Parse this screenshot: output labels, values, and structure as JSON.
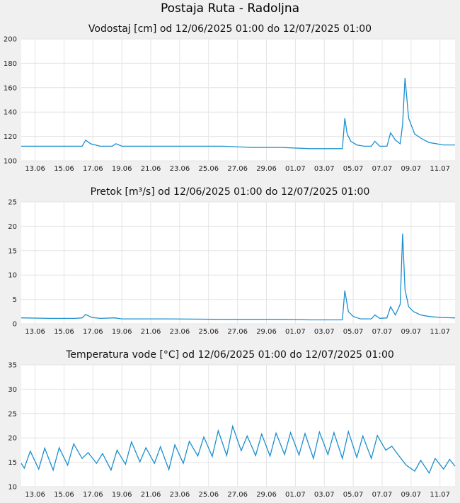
{
  "title": "Postaja Ruta - Radoljna",
  "colors": {
    "series": "#1a8fcf",
    "background": "#f0f0f0",
    "plot_area": "#ffffff",
    "grid": "#e4e4e4"
  },
  "chart_data": [
    {
      "type": "line",
      "title": "Vodostaj [cm] od 12/06/2025 01:00 do 12/07/2025 01:00",
      "xlim": [
        "2025-06-12 01:00",
        "2025-07-12 01:00"
      ],
      "ylim": [
        100,
        200
      ],
      "yticks": [
        100,
        120,
        140,
        160,
        180,
        200
      ],
      "xticks": [
        "13.06",
        "15.06",
        "17.06",
        "19.06",
        "21.06",
        "23.06",
        "25.06",
        "27.06",
        "29.06",
        "01.07",
        "03.07",
        "05.07",
        "07.07",
        "09.07",
        "11.07"
      ],
      "grid": true,
      "series": [
        {
          "x": [
            "2025-06-12 01:00",
            "2025-06-13 00:00",
            "2025-06-14 00:00",
            "2025-06-15 00:00",
            "2025-06-15 18:00",
            "2025-06-16 06:00",
            "2025-06-16 12:00",
            "2025-06-16 20:00",
            "2025-06-17 12:00",
            "2025-06-18 00:00",
            "2025-06-18 08:00",
            "2025-06-18 14:00",
            "2025-06-19 00:00",
            "2025-06-20 00:00",
            "2025-06-22 00:00",
            "2025-06-24 00:00",
            "2025-06-26 00:00",
            "2025-06-28 00:00",
            "2025-06-30 00:00",
            "2025-07-02 00:00",
            "2025-07-03 00:00",
            "2025-07-04 00:00",
            "2025-07-04 06:00",
            "2025-07-04 10:00",
            "2025-07-04 14:00",
            "2025-07-04 20:00",
            "2025-07-05 06:00",
            "2025-07-05 18:00",
            "2025-07-06 06:00",
            "2025-07-06 12:00",
            "2025-07-06 20:00",
            "2025-07-07 08:00",
            "2025-07-07 14:00",
            "2025-07-07 22:00",
            "2025-07-08 06:00",
            "2025-07-08 10:00",
            "2025-07-08 14:00",
            "2025-07-08 20:00",
            "2025-07-09 06:00",
            "2025-07-09 18:00",
            "2025-07-10 06:00",
            "2025-07-10 18:00",
            "2025-07-11 06:00",
            "2025-07-12 01:00"
          ],
          "y": [
            112,
            112,
            112,
            112,
            112,
            112,
            117,
            114,
            112,
            112,
            112,
            114,
            112,
            112,
            112,
            112,
            112,
            111,
            111,
            110,
            110,
            110,
            110,
            135,
            122,
            116,
            113,
            112,
            112,
            116,
            112,
            112,
            123,
            117,
            114,
            130,
            168,
            135,
            122,
            118,
            115,
            114,
            113,
            113
          ]
        }
      ]
    },
    {
      "type": "line",
      "title": "Pretok [m³/s] od 12/06/2025 01:00 do 12/07/2025 01:00",
      "xlim": [
        "2025-06-12 01:00",
        "2025-07-12 01:00"
      ],
      "ylim": [
        0,
        25
      ],
      "yticks": [
        0,
        5,
        10,
        15,
        20,
        25
      ],
      "xticks": [
        "13.06",
        "15.06",
        "17.06",
        "19.06",
        "21.06",
        "23.06",
        "25.06",
        "27.06",
        "29.06",
        "01.07",
        "03.07",
        "05.07",
        "07.07",
        "09.07",
        "11.07"
      ],
      "grid": true,
      "series": [
        {
          "x": [
            "2025-06-12 01:00",
            "2025-06-14 00:00",
            "2025-06-15 18:00",
            "2025-06-16 06:00",
            "2025-06-16 12:00",
            "2025-06-16 22:00",
            "2025-06-17 12:00",
            "2025-06-18 12:00",
            "2025-06-19 00:00",
            "2025-06-22 00:00",
            "2025-06-26 00:00",
            "2025-06-30 00:00",
            "2025-07-02 00:00",
            "2025-07-04 00:00",
            "2025-07-04 06:00",
            "2025-07-04 10:00",
            "2025-07-04 16:00",
            "2025-07-05 00:00",
            "2025-07-05 12:00",
            "2025-07-06 06:00",
            "2025-07-06 12:00",
            "2025-07-06 20:00",
            "2025-07-07 08:00",
            "2025-07-07 14:00",
            "2025-07-07 22:00",
            "2025-07-08 06:00",
            "2025-07-08 10:00",
            "2025-07-08 14:00",
            "2025-07-08 20:00",
            "2025-07-09 04:00",
            "2025-07-09 16:00",
            "2025-07-10 06:00",
            "2025-07-11 00:00",
            "2025-07-12 01:00"
          ],
          "y": [
            1.2,
            1.1,
            1.1,
            1.2,
            1.9,
            1.3,
            1.1,
            1.2,
            1.0,
            1.0,
            0.9,
            0.9,
            0.8,
            0.8,
            0.8,
            6.8,
            2.5,
            1.5,
            1.0,
            1.0,
            1.8,
            1.1,
            1.2,
            3.5,
            1.8,
            4.0,
            18.5,
            7.0,
            3.5,
            2.5,
            1.8,
            1.5,
            1.3,
            1.2
          ]
        }
      ]
    },
    {
      "type": "line",
      "title": "Temperatura vode [°C] od 12/06/2025 01:00 do 12/07/2025 01:00",
      "xlim": [
        "2025-06-12 01:00",
        "2025-07-12 01:00"
      ],
      "ylim": [
        10,
        35
      ],
      "yticks": [
        10,
        15,
        20,
        25,
        30,
        35
      ],
      "xticks": [
        "13.06",
        "15.06",
        "17.06",
        "19.06",
        "21.06",
        "23.06",
        "25.06",
        "27.06",
        "29.06",
        "01.07",
        "03.07",
        "05.07",
        "07.07",
        "09.07",
        "11.07"
      ],
      "grid": true,
      "series": [
        {
          "x": [
            "2025-06-12 01:00",
            "2025-06-12 06:00",
            "2025-06-12 16:00",
            "2025-06-13 06:00",
            "2025-06-13 16:00",
            "2025-06-14 06:00",
            "2025-06-14 16:00",
            "2025-06-15 06:00",
            "2025-06-15 16:00",
            "2025-06-16 06:00",
            "2025-06-16 16:00",
            "2025-06-17 06:00",
            "2025-06-17 16:00",
            "2025-06-18 06:00",
            "2025-06-18 16:00",
            "2025-06-19 06:00",
            "2025-06-19 16:00",
            "2025-06-20 06:00",
            "2025-06-20 16:00",
            "2025-06-21 06:00",
            "2025-06-21 16:00",
            "2025-06-22 06:00",
            "2025-06-22 16:00",
            "2025-06-23 06:00",
            "2025-06-23 16:00",
            "2025-06-24 06:00",
            "2025-06-24 16:00",
            "2025-06-25 06:00",
            "2025-06-25 16:00",
            "2025-06-26 06:00",
            "2025-06-26 16:00",
            "2025-06-27 06:00",
            "2025-06-27 16:00",
            "2025-06-28 06:00",
            "2025-06-28 16:00",
            "2025-06-29 06:00",
            "2025-06-29 16:00",
            "2025-06-30 06:00",
            "2025-06-30 16:00",
            "2025-07-01 06:00",
            "2025-07-01 16:00",
            "2025-07-02 06:00",
            "2025-07-02 16:00",
            "2025-07-03 06:00",
            "2025-07-03 16:00",
            "2025-07-04 06:00",
            "2025-07-04 16:00",
            "2025-07-05 06:00",
            "2025-07-05 16:00",
            "2025-07-06 06:00",
            "2025-07-06 16:00",
            "2025-07-07 06:00",
            "2025-07-07 16:00",
            "2025-07-08 06:00",
            "2025-07-08 16:00",
            "2025-07-09 06:00",
            "2025-07-09 16:00",
            "2025-07-10 06:00",
            "2025-07-10 16:00",
            "2025-07-11 06:00",
            "2025-07-11 16:00",
            "2025-07-12 01:00"
          ],
          "y": [
            14.8,
            13.8,
            17.3,
            13.6,
            17.9,
            13.4,
            18.0,
            14.4,
            18.8,
            15.8,
            17.0,
            14.8,
            16.8,
            13.4,
            17.5,
            14.6,
            19.2,
            15.1,
            18.0,
            14.8,
            18.2,
            13.5,
            18.6,
            14.8,
            19.3,
            16.3,
            20.2,
            16.2,
            21.5,
            16.4,
            22.4,
            17.4,
            20.4,
            16.4,
            20.8,
            16.3,
            21.0,
            16.6,
            21.1,
            16.5,
            20.9,
            15.8,
            21.2,
            16.6,
            21.1,
            15.8,
            21.3,
            16.0,
            20.4,
            15.8,
            20.5,
            17.5,
            18.3,
            16.0,
            14.4,
            13.2,
            15.4,
            12.8,
            15.8,
            13.6,
            15.6,
            14.2
          ]
        }
      ]
    }
  ]
}
